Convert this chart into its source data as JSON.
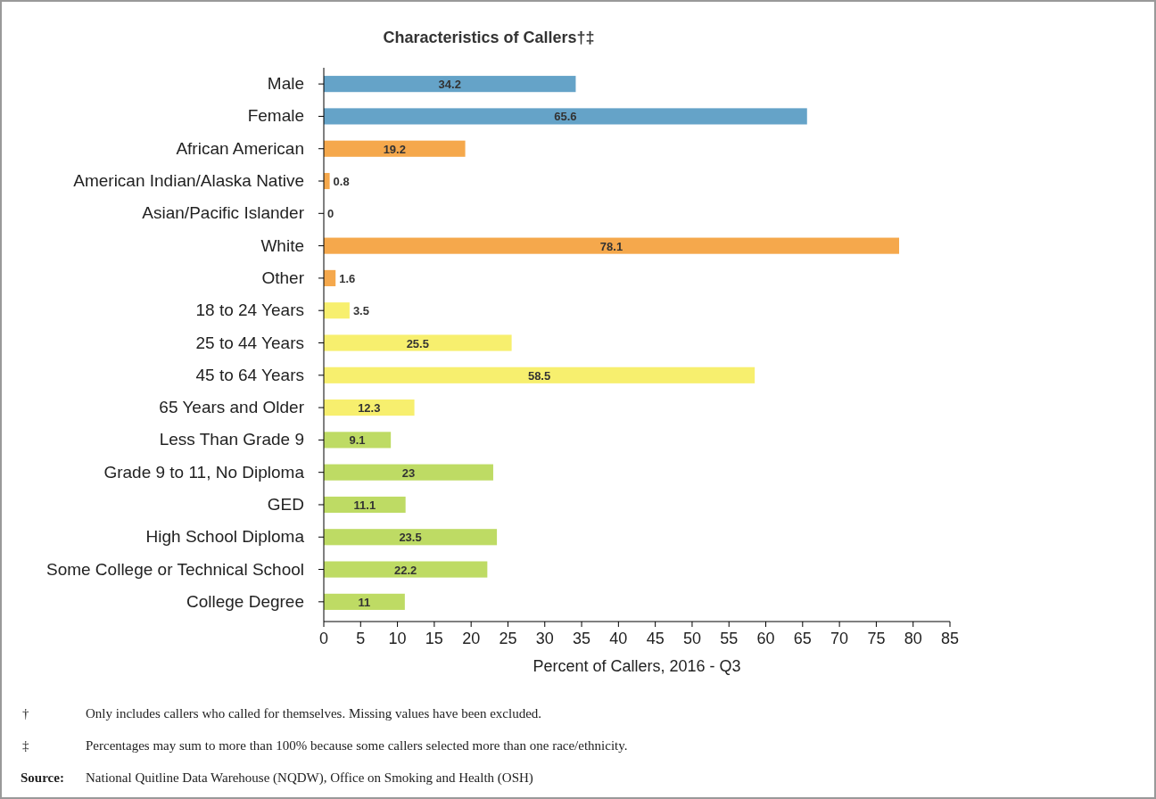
{
  "chart_data": {
    "type": "bar",
    "orientation": "horizontal",
    "title": "Characteristics of Callers†‡",
    "xlabel": "Percent of Callers, 2016 - Q3",
    "categories": [
      "Male",
      "Female",
      "African American",
      "American Indian/Alaska Native",
      "Asian/Pacific Islander",
      "White",
      "Other",
      "18 to 24 Years",
      "25 to 44 Years",
      "45 to 64 Years",
      "65 Years and Older",
      "Less Than Grade 9",
      "Grade 9 to 11, No Diploma",
      "GED",
      "High School Diploma",
      "Some College or Technical School",
      "College Degree"
    ],
    "values": [
      34.2,
      65.6,
      19.2,
      0.8,
      0,
      78.1,
      1.6,
      3.5,
      25.5,
      58.5,
      12.3,
      9.1,
      23,
      11.1,
      23.5,
      22.2,
      11
    ],
    "colors": [
      "#65a3c8",
      "#65a3c8",
      "#f5a84c",
      "#f5a84c",
      "#f5a84c",
      "#f5a84c",
      "#f5a84c",
      "#f7ef6e",
      "#f7ef6e",
      "#f7ef6e",
      "#f7ef6e",
      "#bedb64",
      "#bedb64",
      "#bedb64",
      "#bedb64",
      "#bedb64",
      "#bedb64"
    ],
    "xlim": [
      0,
      85
    ],
    "xticks": [
      0,
      5,
      10,
      15,
      20,
      25,
      30,
      35,
      40,
      45,
      50,
      55,
      60,
      65,
      70,
      75,
      80,
      85
    ],
    "data_labels": true,
    "annotations": [
      "† Only includes callers who called for themselves. Missing values have been excluded.",
      "‡ Percentages may sum to more than 100% because some callers selected more than one race/ethnicity.",
      "Source: National Quitline Data Warehouse (NQDW), Office on Smoking and Health (OSH)"
    ]
  }
}
